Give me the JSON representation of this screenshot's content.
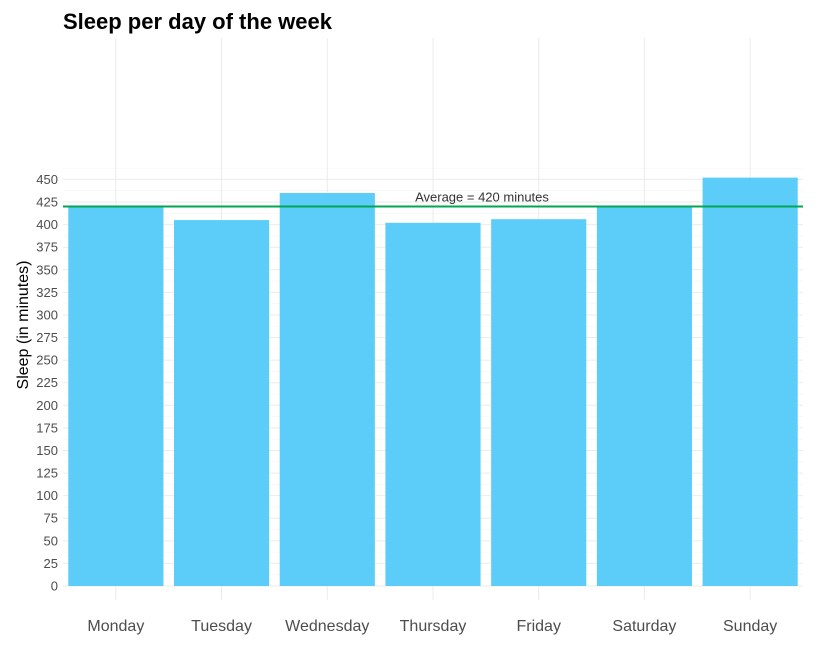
{
  "chart_data": {
    "type": "bar",
    "title": "Sleep per day of the week",
    "xlabel": "",
    "ylabel": "Sleep (in minutes)",
    "categories": [
      "Monday",
      "Tuesday",
      "Wednesday",
      "Thursday",
      "Friday",
      "Saturday",
      "Sunday"
    ],
    "values": [
      420,
      405,
      435,
      402,
      406,
      419,
      452
    ],
    "ylim": [
      0,
      470
    ],
    "yticks": [
      "0",
      "25",
      "50",
      "75",
      "100",
      "125",
      "150",
      "175",
      "200",
      "225",
      "250",
      "275",
      "300",
      "325",
      "350",
      "375",
      "400",
      "425",
      "450"
    ],
    "reference_line": {
      "value": 420,
      "label": "Average = 420 minutes",
      "color": "#00a651"
    },
    "bar_color": "#5bcdf8",
    "grid": true,
    "legend": "none"
  }
}
